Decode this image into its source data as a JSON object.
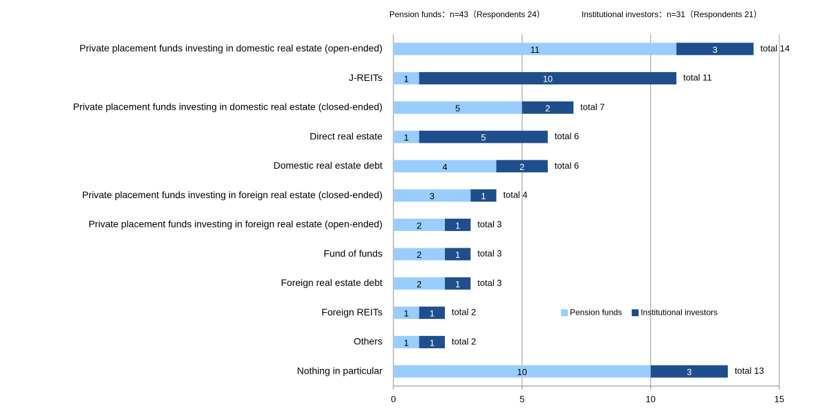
{
  "chart_data": {
    "type": "stacked_bar_horizontal",
    "subtitles": [
      "Pension funds：n=43（Respondents 24）",
      "Institutional investors：n=31（Respondents 21）"
    ],
    "categories": [
      "Private placement funds investing in domestic real estate (open-ended)",
      "J-REITs",
      "Private placement funds investing in domestic real estate (closed-ended)",
      "Direct real estate",
      "Domestic real estate debt",
      "Private placement funds investing in foreign real estate (closed-ended)",
      "Private placement funds investing in foreign real estate (open-ended)",
      "Fund of funds",
      "Foreign real estate debt",
      "Foreign REITs",
      "Others",
      "Nothing in particular"
    ],
    "series": [
      {
        "name": "Pension funds",
        "color": "#99ccff",
        "label_color": "#000000",
        "values": [
          11,
          1,
          5,
          1,
          4,
          3,
          2,
          2,
          2,
          1,
          1,
          10
        ]
      },
      {
        "name": "Institutional investors",
        "color": "#1f4e8c",
        "label_color": "#ffffff",
        "values": [
          3,
          10,
          2,
          5,
          2,
          1,
          1,
          1,
          1,
          1,
          1,
          3
        ]
      }
    ],
    "total_labels": [
      "total 14",
      "total 11",
      "total 7",
      "total 6",
      "total 6",
      "total 4",
      "total 3",
      "total 3",
      "total 3",
      "total 2",
      "total 2",
      "total 13"
    ],
    "xlim": [
      0,
      15
    ],
    "xticks": [
      0,
      5,
      10,
      15
    ],
    "grid": true,
    "legend": "lower right"
  }
}
